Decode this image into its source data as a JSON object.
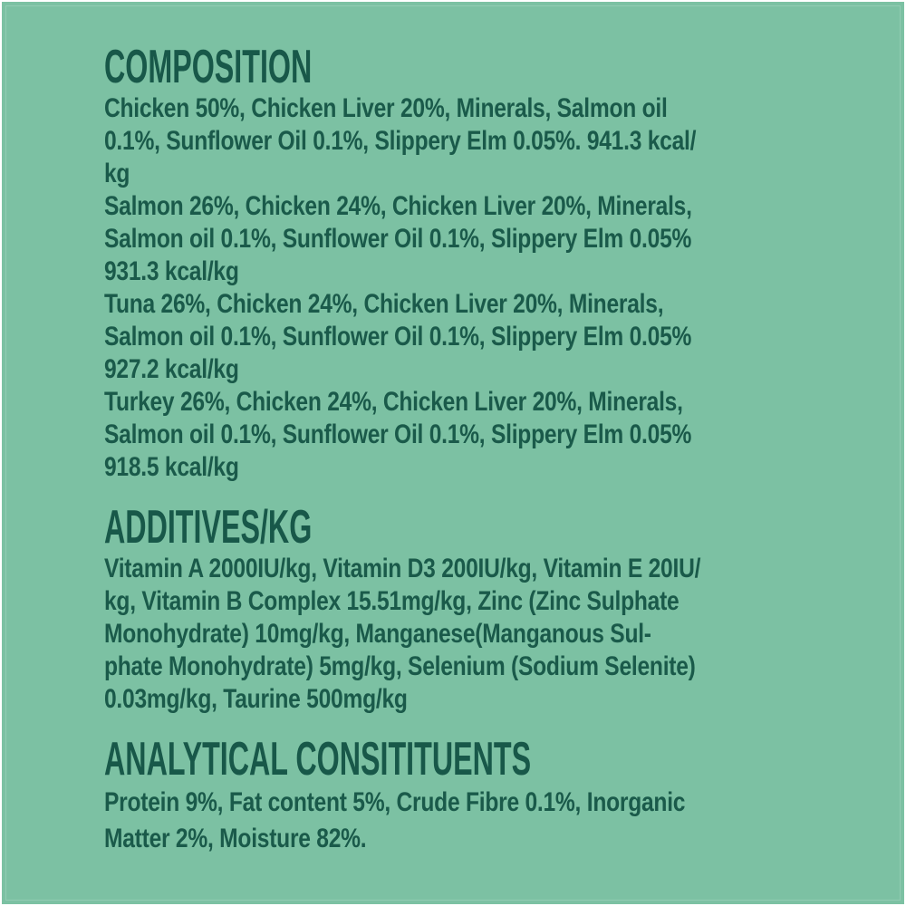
{
  "colors": {
    "background": "#7cc1a3",
    "text": "#1a5a4a",
    "edge": "#ffffff"
  },
  "sections": [
    {
      "id": "composition",
      "heading": "COMPOSITION",
      "lines": [
        "Chicken 50%, Chicken Liver 20%, Minerals, Salmon oil",
        "0.1%, Sunflower Oil 0.1%, Slippery Elm 0.05%. 941.3 kcal/",
        "kg",
        "Salmon 26%, Chicken 24%, Chicken Liver 20%, Minerals,",
        "Salmon oil 0.1%, Sunflower Oil 0.1%, Slippery Elm 0.05%",
        "931.3 kcal/kg",
        "Tuna 26%, Chicken 24%, Chicken Liver 20%, Minerals,",
        "Salmon oil 0.1%, Sunflower Oil 0.1%, Slippery Elm 0.05%",
        "927.2 kcal/kg",
        "Turkey 26%, Chicken 24%, Chicken Liver 20%, Minerals,",
        "Salmon oil 0.1%, Sunflower Oil 0.1%, Slippery Elm 0.05%",
        "918.5 kcal/kg"
      ]
    },
    {
      "id": "additives",
      "heading": "ADDITIVES/KG",
      "lines": [
        "Vitamin A 2000IU/kg, Vitamin D3 200IU/kg, Vitamin E 20IU/",
        "kg, Vitamin B Complex 15.51mg/kg, Zinc (Zinc Sulphate",
        "Monohydrate) 10mg/kg, Manganese(Manganous Sul-",
        "phate Monohydrate) 5mg/kg, Selenium (Sodium Selenite)",
        "0.03mg/kg, Taurine 500mg/kg"
      ]
    },
    {
      "id": "analytical",
      "heading": "ANALYTICAL CONSITITUENTS",
      "lines": [
        "Protein 9%, Fat content 5%, Crude Fibre 0.1%, Inorganic",
        "Matter 2%, Moisture 82%."
      ]
    }
  ]
}
